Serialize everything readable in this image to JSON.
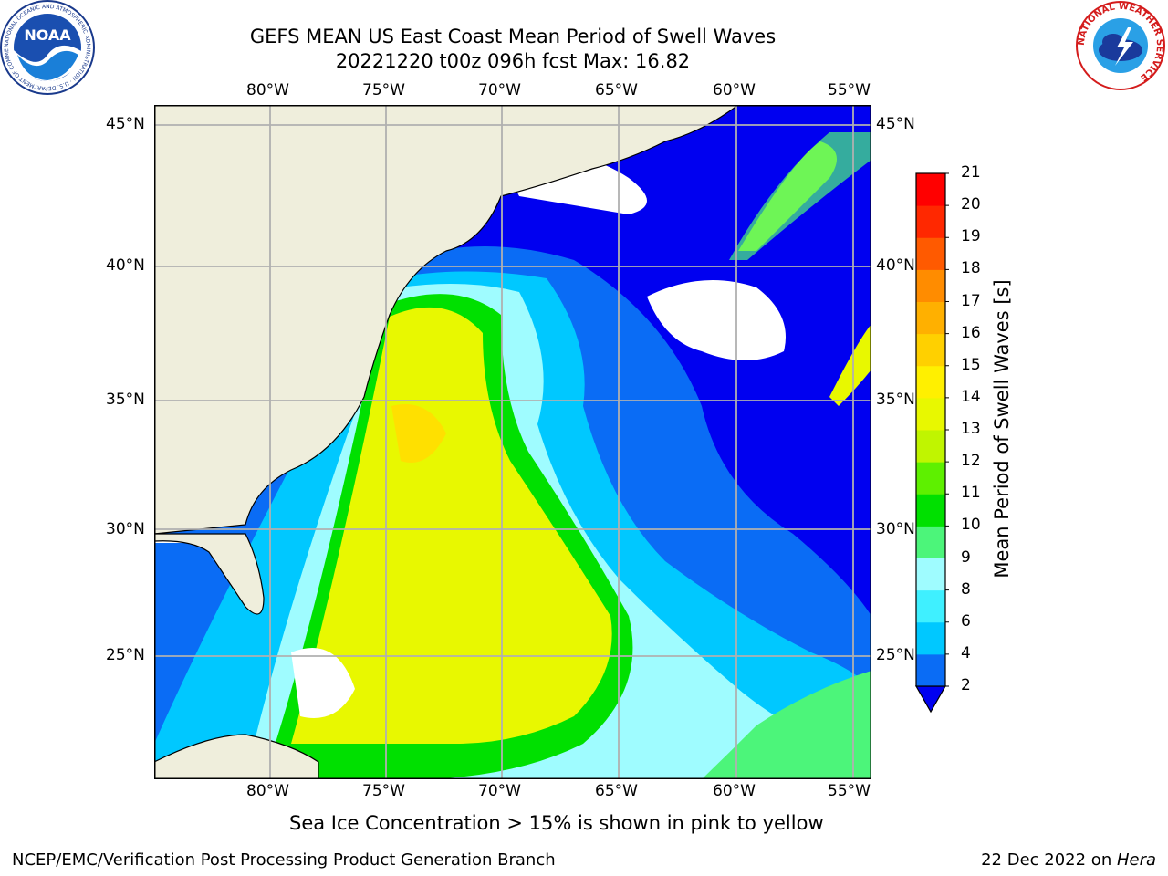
{
  "title": {
    "line1": "GEFS MEAN US East Coast Mean Period of Swell Waves",
    "line2": "20221220 t00z 096h fcst   Max: 16.82"
  },
  "map": {
    "lon_ticks": [
      "80°W",
      "75°W",
      "70°W",
      "65°W",
      "60°W",
      "55°W"
    ],
    "lat_ticks": [
      "45°N",
      "40°N",
      "35°N",
      "30°N",
      "25°N"
    ],
    "lon_range": [
      -85,
      -54
    ],
    "lat_range": [
      20.5,
      46
    ],
    "land_color": "#efeedc",
    "grid_color": "#b0b0b0"
  },
  "colorbar": {
    "label": "Mean Period of Swell Waves [s]",
    "ticks": [
      "2",
      "4",
      "6",
      "8",
      "9",
      "10",
      "11",
      "12",
      "13",
      "14",
      "15",
      "16",
      "17",
      "18",
      "19",
      "20",
      "21"
    ],
    "colors": [
      "#0a6cf5",
      "#00c8ff",
      "#3ff0ff",
      "#9ffcff",
      "#4cf57a",
      "#00e000",
      "#5ef000",
      "#c0f500",
      "#e8f800",
      "#fff000",
      "#ffd000",
      "#ffb000",
      "#ff8c00",
      "#ff5a00",
      "#ff2800",
      "#ff0000"
    ],
    "extend_color": "#0000f0"
  },
  "notes": {
    "sea_ice": "Sea Ice Concentration > 15% is shown in pink to yellow"
  },
  "footer": {
    "left": "NCEP/EMC/Verification Post Processing Product Generation Branch",
    "right_date": "22 Dec 2022 on ",
    "right_host": "Hera"
  },
  "logos": {
    "noaa_text": "NOAA",
    "noaa_ring": "NATIONAL OCEANIC AND ATMOSPHERIC ADMINISTRATION · U.S. DEPARTMENT OF COMMERCE ·",
    "nws_ring": "NATIONAL WEATHER SERVICE"
  }
}
